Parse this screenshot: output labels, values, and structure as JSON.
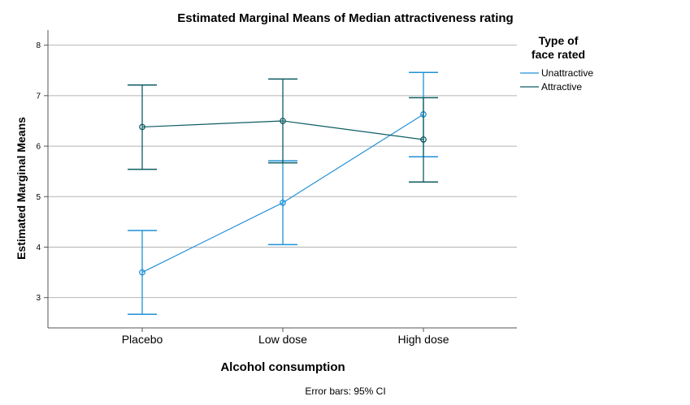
{
  "chart_data": {
    "type": "line",
    "title": "Estimated Marginal Means of Median attractiveness rating",
    "xlabel": "Alcohol consumption",
    "ylabel": "Estimated Marginal Means",
    "categories": [
      "Placebo",
      "Low dose",
      "High dose"
    ],
    "ylim": [
      2.4,
      8.3
    ],
    "yticks": [
      "3",
      "4",
      "5",
      "6",
      "7",
      "8"
    ],
    "grid": true,
    "legend_title": "Type of face rated",
    "legend_title_lines": [
      "Type of",
      "face rated"
    ],
    "legend_position": "top-right",
    "footnote": "Error bars: 95% CI",
    "series": [
      {
        "name": "Unattractive",
        "color": "#1e90d6",
        "values": [
          3.5,
          4.88,
          6.63
        ],
        "ci_low": [
          2.67,
          4.05,
          5.79
        ],
        "ci_high": [
          4.33,
          5.71,
          7.46
        ]
      },
      {
        "name": "Attractive",
        "color": "#0d5c63",
        "values": [
          6.38,
          6.5,
          6.13
        ],
        "ci_low": [
          5.54,
          5.67,
          5.29
        ],
        "ci_high": [
          7.21,
          7.33,
          6.96
        ]
      }
    ]
  }
}
